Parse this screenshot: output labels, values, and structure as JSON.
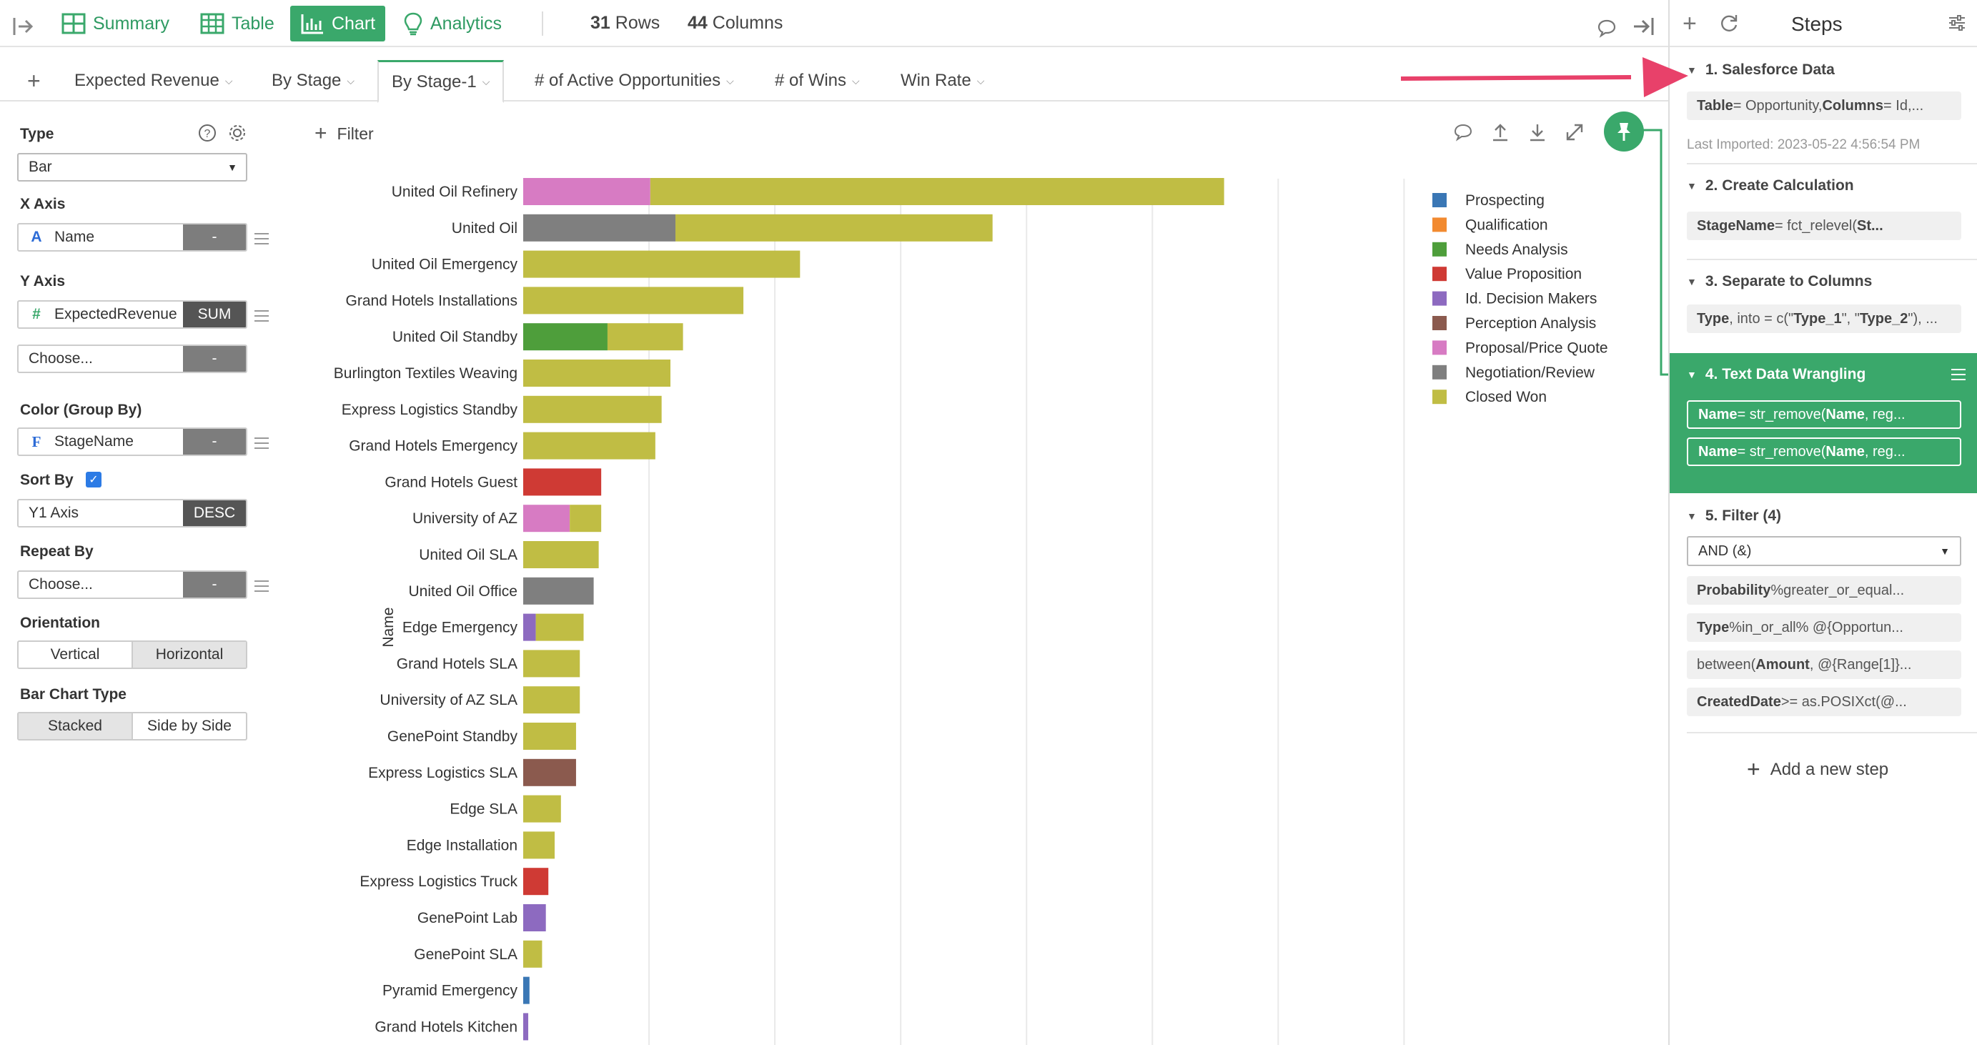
{
  "toolbar": {
    "summary": "Summary",
    "table": "Table",
    "chart": "Chart",
    "analytics": "Analytics",
    "rows_count": "31",
    "rows_label": "Rows",
    "cols_count": "44",
    "cols_label": "Columns"
  },
  "tabs": [
    {
      "label": "Expected Revenue"
    },
    {
      "label": "By Stage"
    },
    {
      "label": "By Stage-1"
    },
    {
      "label": "# of Active Opportunities"
    },
    {
      "label": "# of Wins"
    },
    {
      "label": "Win Rate"
    }
  ],
  "config": {
    "type_label": "Type",
    "type_value": "Bar",
    "x_axis_label": "X Axis",
    "x_axis_field": "Name",
    "x_axis_agg": "-",
    "y_axis_label": "Y Axis",
    "y_axis_field": "ExpectedRevenue",
    "y_axis_agg": "SUM",
    "y_axis2_placeholder": "Choose...",
    "y_axis2_agg": "-",
    "color_label": "Color (Group By)",
    "color_field": "StageName",
    "color_agg": "-",
    "sort_label": "Sort By",
    "sort_field": "Y1 Axis",
    "sort_dir": "DESC",
    "repeat_label": "Repeat By",
    "repeat_placeholder": "Choose...",
    "repeat_agg": "-",
    "orientation_label": "Orientation",
    "orientation_vertical": "Vertical",
    "orientation_horizontal": "Horizontal",
    "bartype_label": "Bar Chart Type",
    "bartype_stacked": "Stacked",
    "bartype_side": "Side by Side"
  },
  "filter_label": "Filter",
  "chart_data": {
    "type": "bar",
    "orientation": "horizontal",
    "stacked": true,
    "ylabel": "Name",
    "xlim": [
      0,
      7600
    ],
    "grid": true,
    "legend_position": "right",
    "stage_colors": {
      "Prospecting": "#3a77b5",
      "Qualification": "#f28a30",
      "Needs Analysis": "#4e9e3b",
      "Value Proposition": "#cf3a34",
      "Id. Decision Makers": "#8d6ac0",
      "Perception Analysis": "#8b5a4e",
      "Proposal/Price Quote": "#d77bc3",
      "Negotiation/Review": "#7f7f7f",
      "Closed Won": "#c0bd44"
    },
    "legend": [
      "Prospecting",
      "Qualification",
      "Needs Analysis",
      "Value Proposition",
      "Id. Decision Makers",
      "Perception Analysis",
      "Proposal/Price Quote",
      "Negotiation/Review",
      "Closed Won"
    ],
    "categories": [
      {
        "name": "United Oil Refinery",
        "segments": [
          {
            "stage": "Proposal/Price Quote",
            "value": 1010
          },
          {
            "stage": "Closed Won",
            "value": 4560
          }
        ]
      },
      {
        "name": "United Oil",
        "segments": [
          {
            "stage": "Negotiation/Review",
            "value": 1210
          },
          {
            "stage": "Closed Won",
            "value": 2520
          }
        ]
      },
      {
        "name": "United Oil Emergency",
        "segments": [
          {
            "stage": "Closed Won",
            "value": 2200
          }
        ]
      },
      {
        "name": "Grand Hotels Installations",
        "segments": [
          {
            "stage": "Closed Won",
            "value": 1750
          }
        ]
      },
      {
        "name": "United Oil Standby",
        "segments": [
          {
            "stage": "Needs Analysis",
            "value": 670
          },
          {
            "stage": "Closed Won",
            "value": 600
          }
        ]
      },
      {
        "name": "Burlington Textiles Weaving",
        "segments": [
          {
            "stage": "Closed Won",
            "value": 1170
          }
        ]
      },
      {
        "name": "Express Logistics Standby",
        "segments": [
          {
            "stage": "Closed Won",
            "value": 1100
          }
        ]
      },
      {
        "name": "Grand Hotels Emergency",
        "segments": [
          {
            "stage": "Closed Won",
            "value": 1050
          }
        ]
      },
      {
        "name": "Grand Hotels Guest",
        "segments": [
          {
            "stage": "Value Proposition",
            "value": 620
          }
        ]
      },
      {
        "name": "University of AZ",
        "segments": [
          {
            "stage": "Proposal/Price Quote",
            "value": 370
          },
          {
            "stage": "Closed Won",
            "value": 250
          }
        ]
      },
      {
        "name": "United Oil SLA",
        "segments": [
          {
            "stage": "Closed Won",
            "value": 600
          }
        ]
      },
      {
        "name": "United Oil Office",
        "segments": [
          {
            "stage": "Negotiation/Review",
            "value": 560
          }
        ]
      },
      {
        "name": "Edge Emergency",
        "segments": [
          {
            "stage": "Id. Decision Makers",
            "value": 100
          },
          {
            "stage": "Closed Won",
            "value": 380
          }
        ]
      },
      {
        "name": "Grand Hotels SLA",
        "segments": [
          {
            "stage": "Closed Won",
            "value": 450
          }
        ]
      },
      {
        "name": "University of AZ SLA",
        "segments": [
          {
            "stage": "Closed Won",
            "value": 450
          }
        ]
      },
      {
        "name": "GenePoint Standby",
        "segments": [
          {
            "stage": "Closed Won",
            "value": 420
          }
        ]
      },
      {
        "name": "Express Logistics SLA",
        "segments": [
          {
            "stage": "Perception Analysis",
            "value": 420
          }
        ]
      },
      {
        "name": "Edge SLA",
        "segments": [
          {
            "stage": "Closed Won",
            "value": 300
          }
        ]
      },
      {
        "name": "Edge Installation",
        "segments": [
          {
            "stage": "Closed Won",
            "value": 250
          }
        ]
      },
      {
        "name": "Express Logistics Truck",
        "segments": [
          {
            "stage": "Value Proposition",
            "value": 200
          }
        ]
      },
      {
        "name": "GenePoint Lab",
        "segments": [
          {
            "stage": "Id. Decision Makers",
            "value": 180
          }
        ]
      },
      {
        "name": "GenePoint SLA",
        "segments": [
          {
            "stage": "Closed Won",
            "value": 150
          }
        ]
      },
      {
        "name": "Pyramid Emergency",
        "segments": [
          {
            "stage": "Prospecting",
            "value": 50
          }
        ]
      },
      {
        "name": "Grand Hotels Kitchen",
        "segments": [
          {
            "stage": "Id. Decision Makers",
            "value": 40
          }
        ]
      }
    ]
  },
  "steps": {
    "title": "Steps",
    "step1_title": "1. Salesforce Data",
    "step1_k1": "Table",
    "step1_v1": " = Opportunity, ",
    "step1_k2": "Columns",
    "step1_v2": " = Id,...",
    "step1_sub": "Last Imported: 2023-05-22 4:56:54 PM",
    "step2_title": "2. Create Calculation",
    "step2_k": "StageName",
    "step2_v": " = fct_relevel(",
    "step2_k2": "St...",
    "step3_title": "3. Separate to Columns",
    "step3_k": "Type",
    "step3_v": ", into = c(\"",
    "step3_k2": "Type_1",
    "step3_v2": "\", \"",
    "step3_k3": "Type_2",
    "step3_v3": "\"), ...",
    "step4_title": "4. Text Data Wrangling",
    "step4_a_k": "Name",
    "step4_a_v": " = str_remove(",
    "step4_a_k2": "Name",
    "step4_a_v2": ", reg...",
    "step4_b_k": "Name",
    "step4_b_v": " = str_remove(",
    "step4_b_k2": "Name",
    "step4_b_v2": ", reg...",
    "step5_title": "5. Filter (4)",
    "step5_op": "AND (&)",
    "step5_f1_k": "Probability",
    "step5_f1_v": " %greater_or_equal...",
    "step5_f2_k": "Type",
    "step5_f2_v": " %in_or_all% @{Opportun...",
    "step5_f3_a": "between(",
    "step5_f3_k": "Amount",
    "step5_f3_v": ", @{Range[1]}...",
    "step5_f4_k": "CreatedDate",
    "step5_f4_v": " >= as.POSIXct(@...",
    "add_step": "Add a new step"
  },
  "colors": {
    "accent": "#3aa86b",
    "arrow": "#e8416a"
  }
}
